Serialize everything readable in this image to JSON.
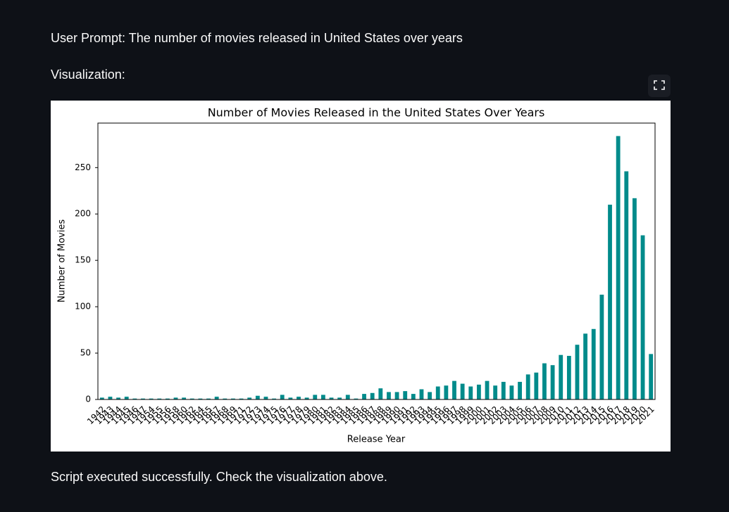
{
  "prompt": "User Prompt: The number of movies released in United States over years",
  "label": "Visualization:",
  "status": "Script executed successfully. Check the visualization above.",
  "chart_data": {
    "type": "bar",
    "title": "Number of Movies Released in the United States Over Years",
    "x_label": "Release Year",
    "y_label": "Number of Movies",
    "categories": [
      "1942",
      "1943",
      "1944",
      "1945",
      "1946",
      "1947",
      "1954",
      "1955",
      "1956",
      "1958",
      "1960",
      "1962",
      "1964",
      "1965",
      "1967",
      "1968",
      "1969",
      "1971",
      "1972",
      "1973",
      "1974",
      "1975",
      "1976",
      "1977",
      "1978",
      "1979",
      "1980",
      "1981",
      "1982",
      "1983",
      "1984",
      "1985",
      "1986",
      "1987",
      "1988",
      "1989",
      "1990",
      "1991",
      "1992",
      "1993",
      "1994",
      "1995",
      "1996",
      "1997",
      "1998",
      "1999",
      "2000",
      "2001",
      "2002",
      "2003",
      "2004",
      "2005",
      "2006",
      "2007",
      "2008",
      "2009",
      "2010",
      "2011",
      "2012",
      "2013",
      "2014",
      "2015",
      "2016",
      "2017",
      "2018",
      "2019",
      "2020",
      "2021"
    ],
    "values": [
      2,
      3,
      2,
      3,
      1,
      1,
      1,
      1,
      1,
      2,
      2,
      1,
      1,
      1,
      3,
      1,
      1,
      1,
      2,
      4,
      3,
      1,
      5,
      2,
      3,
      2,
      5,
      5,
      2,
      2,
      5,
      1,
      6,
      7,
      12,
      8,
      8,
      9,
      6,
      11,
      8,
      14,
      15,
      20,
      17,
      14,
      16,
      20,
      15,
      19,
      15,
      19,
      27,
      29,
      39,
      37,
      48,
      47,
      59,
      71,
      76,
      113,
      210,
      284,
      246,
      217,
      177,
      49
    ],
    "color": "#008b8b",
    "ylim": [
      0,
      298
    ],
    "yticks": [
      0,
      50,
      100,
      150,
      200,
      250
    ],
    "grid": false
  }
}
